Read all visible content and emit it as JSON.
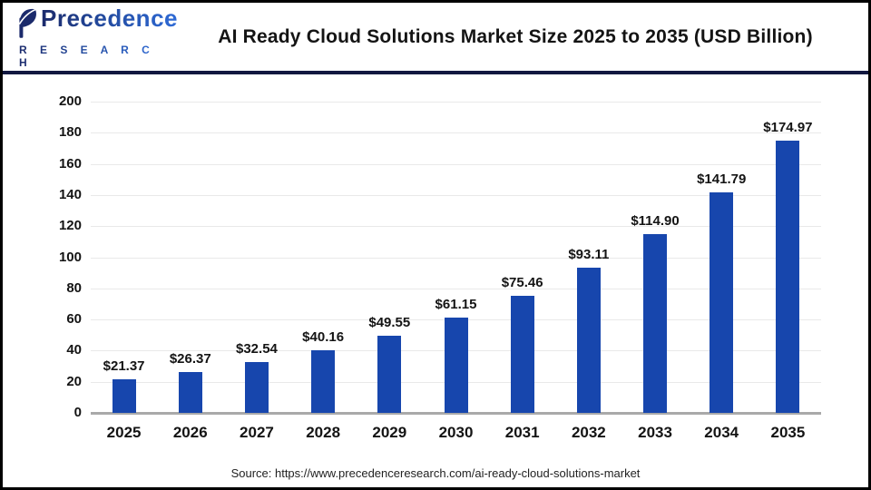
{
  "header": {
    "brand": {
      "name": "Precedence",
      "sub": "R E S E A R C H",
      "color_dark": "#1b2a6b",
      "color_light": "#2e6ad6"
    },
    "title": "AI Ready Cloud Solutions Market Size 2025 to 2035 (USD Billion)"
  },
  "chart_data": {
    "type": "bar",
    "title": "AI Ready Cloud Solutions Market Size 2025 to 2035 (USD Billion)",
    "categories": [
      "2025",
      "2026",
      "2027",
      "2028",
      "2029",
      "2030",
      "2031",
      "2032",
      "2033",
      "2034",
      "2035"
    ],
    "values": [
      21.37,
      26.37,
      32.54,
      40.16,
      49.55,
      61.15,
      75.46,
      93.11,
      114.9,
      141.79,
      174.97
    ],
    "value_labels": [
      "$21.37",
      "$26.37",
      "$32.54",
      "$40.16",
      "$49.55",
      "$61.15",
      "$75.46",
      "$93.11",
      "$114.90",
      "$141.79",
      "$174.97"
    ],
    "xlabel": "",
    "ylabel": "",
    "ylim": [
      0,
      200
    ],
    "ytick_step": 20,
    "grid": true,
    "legend_position": "none",
    "bar_color": "#1746ad",
    "gridline_color": "#e9e9e9",
    "baseline_color": "#a9a9a9",
    "divider_color": "#121840"
  },
  "footer": {
    "source": "Source: https://www.precedenceresearch.com/ai-ready-cloud-solutions-market"
  }
}
